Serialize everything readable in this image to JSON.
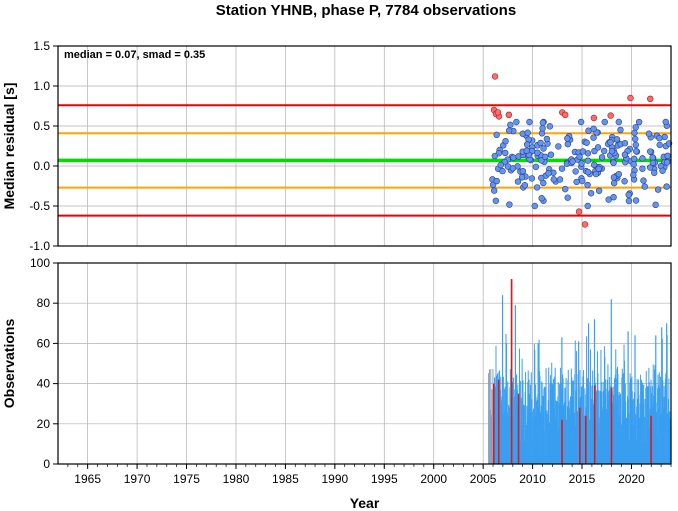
{
  "chart_data": [
    {
      "type": "scatter",
      "title": "Station YHNB, phase P, 7784 observations",
      "ylabel": "Median residual [s]",
      "xlim": [
        1962,
        2024
      ],
      "ylim": [
        -1.0,
        1.5
      ],
      "yticks": [
        "1.5",
        "1.0",
        "0.5",
        "0.0",
        "-0.5",
        "-1.0"
      ],
      "annotation": "median = 0.07, smad = 0.35",
      "grid": true,
      "reference_lines": [
        {
          "y": 0.07,
          "color": "#00dd00"
        },
        {
          "y": 0.41,
          "color": "#ffa500"
        },
        {
          "y": -0.27,
          "color": "#ffa500"
        },
        {
          "y": 0.76,
          "color": "#ee0000"
        },
        {
          "y": -0.62,
          "color": "#ee0000"
        }
      ],
      "colors": {
        "normal": "#6495ed",
        "outlier": "#ff6a6a"
      },
      "outliers": [
        {
          "x": 2006.1,
          "y": 0.7
        },
        {
          "x": 2006.3,
          "y": 0.65
        },
        {
          "x": 2006.6,
          "y": 0.62
        },
        {
          "x": 2006.5,
          "y": 0.67
        },
        {
          "x": 2006.2,
          "y": 1.12
        },
        {
          "x": 2007.6,
          "y": 0.64
        },
        {
          "x": 2013.0,
          "y": 0.67
        },
        {
          "x": 2013.3,
          "y": 0.64
        },
        {
          "x": 2014.7,
          "y": -0.57
        },
        {
          "x": 2015.3,
          "y": -0.73
        },
        {
          "x": 2016.2,
          "y": 0.6
        },
        {
          "x": 2017.9,
          "y": 0.63
        },
        {
          "x": 2019.9,
          "y": 0.85
        },
        {
          "x": 2021.9,
          "y": 0.84
        }
      ]
    },
    {
      "type": "bar",
      "ylabel": "Observations",
      "xlabel": "Year",
      "xlim": [
        1962,
        2024
      ],
      "ylim": [
        0,
        100
      ],
      "yticks": [
        "0",
        "20",
        "40",
        "60",
        "80",
        "100"
      ],
      "xticks": [
        "1965",
        "1970",
        "1975",
        "1980",
        "1985",
        "1990",
        "1995",
        "2000",
        "2005",
        "2010",
        "2015",
        "2020"
      ],
      "grid": true,
      "colors": {
        "bars": "#3a9ff0",
        "early": "#8aa0c0",
        "outlier": "#dd1a1a"
      },
      "data_start": 2005.5,
      "data_end": 2024.0,
      "peaks": [
        {
          "x": 2006.1,
          "y": 43
        },
        {
          "x": 2006.4,
          "y": 45
        },
        {
          "x": 2006.9,
          "y": 84
        },
        {
          "x": 2007.3,
          "y": 60
        },
        {
          "x": 2007.8,
          "y": 92
        },
        {
          "x": 2008.2,
          "y": 79
        },
        {
          "x": 2010.5,
          "y": 60
        },
        {
          "x": 2012.9,
          "y": 63
        },
        {
          "x": 2014.6,
          "y": 61
        },
        {
          "x": 2015.6,
          "y": 70
        },
        {
          "x": 2016.2,
          "y": 72
        },
        {
          "x": 2017.9,
          "y": 82
        },
        {
          "x": 2019.6,
          "y": 66
        },
        {
          "x": 2020.3,
          "y": 64
        },
        {
          "x": 2022.4,
          "y": 64
        },
        {
          "x": 2023.0,
          "y": 68
        },
        {
          "x": 2023.5,
          "y": 70
        }
      ],
      "outlier_bars": [
        {
          "x": 2006.0,
          "y": 40
        },
        {
          "x": 2006.5,
          "y": 42
        },
        {
          "x": 2007.8,
          "y": 92
        },
        {
          "x": 2008.5,
          "y": 35
        },
        {
          "x": 2012.9,
          "y": 22
        },
        {
          "x": 2014.7,
          "y": 28
        },
        {
          "x": 2015.3,
          "y": 24
        },
        {
          "x": 2016.2,
          "y": 39
        },
        {
          "x": 2017.9,
          "y": 38
        },
        {
          "x": 2021.9,
          "y": 24
        }
      ]
    }
  ]
}
